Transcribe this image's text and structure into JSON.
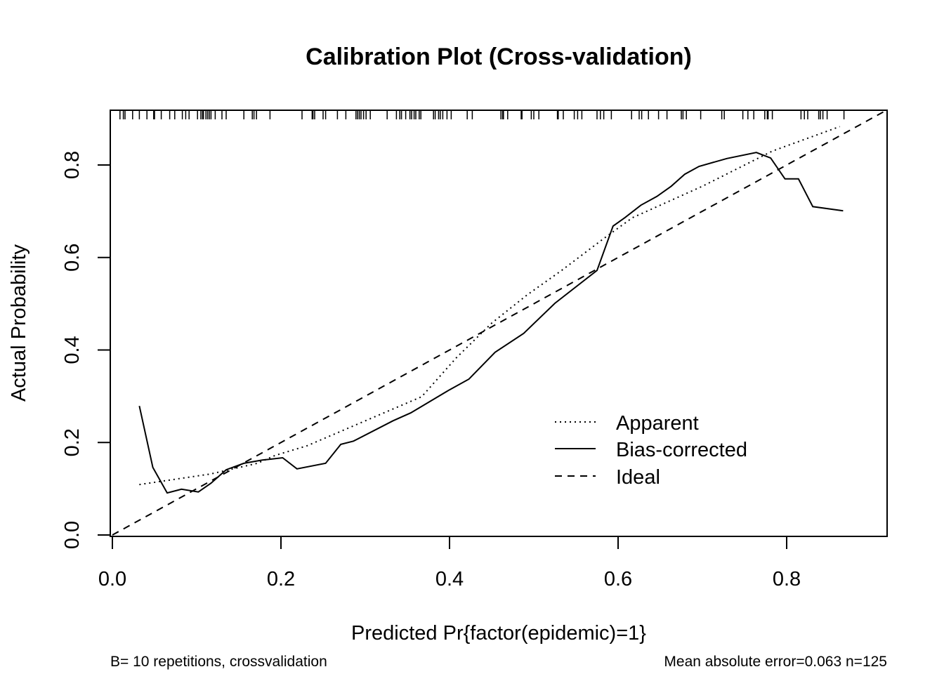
{
  "chart_data": {
    "type": "line",
    "title": "Calibration Plot (Cross-validation)",
    "xlabel": "Predicted Pr{factor(epidemic)=1}",
    "ylabel": "Actual Probability",
    "xlim": [
      0,
      0.919
    ],
    "ylim": [
      0,
      0.918
    ],
    "xticks": [
      0.0,
      0.2,
      0.4,
      0.6,
      0.8
    ],
    "xtick_labels": [
      "0.0",
      "0.2",
      "0.4",
      "0.6",
      "0.8"
    ],
    "yticks": [
      0.0,
      0.2,
      0.4,
      0.6,
      0.8
    ],
    "ytick_labels": [
      "0.0",
      "0.2",
      "0.4",
      "0.6",
      "0.8"
    ],
    "grid": false,
    "legend_position": "bottom-right",
    "footnote_left": "B= 10 repetitions, crossvalidation",
    "footnote_right": "Mean absolute error=0.063 n=125",
    "series": [
      {
        "name": "Apparent",
        "style": "dotted",
        "x": [
          0.032,
          0.117,
          0.172,
          0.193,
          0.231,
          0.367,
          0.408,
          0.45,
          0.492,
          0.533,
          0.583,
          0.617,
          0.7,
          0.783,
          0.863
        ],
        "y": [
          0.109,
          0.132,
          0.155,
          0.172,
          0.193,
          0.299,
          0.383,
          0.458,
          0.519,
          0.572,
          0.641,
          0.686,
          0.754,
          0.83,
          0.883
        ]
      },
      {
        "name": "Bias-corrected",
        "style": "solid",
        "x": [
          0.032,
          0.048,
          0.065,
          0.082,
          0.102,
          0.117,
          0.135,
          0.156,
          0.178,
          0.202,
          0.219,
          0.253,
          0.271,
          0.286,
          0.333,
          0.354,
          0.4,
          0.423,
          0.454,
          0.488,
          0.525,
          0.575,
          0.594,
          0.608,
          0.627,
          0.646,
          0.663,
          0.679,
          0.696,
          0.729,
          0.764,
          0.781,
          0.798,
          0.814,
          0.831,
          0.867
        ],
        "y": [
          0.279,
          0.146,
          0.091,
          0.099,
          0.093,
          0.112,
          0.141,
          0.155,
          0.162,
          0.167,
          0.143,
          0.155,
          0.196,
          0.203,
          0.247,
          0.264,
          0.314,
          0.337,
          0.395,
          0.436,
          0.501,
          0.572,
          0.668,
          0.686,
          0.713,
          0.732,
          0.754,
          0.78,
          0.797,
          0.814,
          0.827,
          0.815,
          0.77,
          0.77,
          0.71,
          0.701
        ]
      },
      {
        "name": "Ideal",
        "style": "dashed",
        "x": [
          0,
          0.919
        ],
        "y": [
          0,
          0.919
        ]
      }
    ],
    "rug_x": [
      0.009,
      0.013,
      0.015,
      0.024,
      0.032,
      0.041,
      0.049,
      0.05,
      0.058,
      0.068,
      0.074,
      0.083,
      0.087,
      0.091,
      0.101,
      0.105,
      0.107,
      0.108,
      0.111,
      0.113,
      0.115,
      0.117,
      0.122,
      0.13,
      0.135,
      0.156,
      0.166,
      0.168,
      0.171,
      0.187,
      0.225,
      0.237,
      0.238,
      0.24,
      0.25,
      0.253,
      0.267,
      0.277,
      0.289,
      0.291,
      0.293,
      0.295,
      0.298,
      0.301,
      0.306,
      0.326,
      0.337,
      0.341,
      0.343,
      0.348,
      0.353,
      0.355,
      0.358,
      0.36,
      0.364,
      0.366,
      0.381,
      0.383,
      0.387,
      0.389,
      0.392,
      0.397,
      0.402,
      0.421,
      0.427,
      0.461,
      0.463,
      0.464,
      0.469,
      0.485,
      0.486,
      0.497,
      0.5,
      0.506,
      0.528,
      0.529,
      0.535,
      0.548,
      0.552,
      0.557,
      0.575,
      0.579,
      0.583,
      0.592,
      0.616,
      0.625,
      0.628,
      0.636,
      0.648,
      0.658,
      0.675,
      0.677,
      0.681,
      0.698,
      0.723,
      0.726,
      0.748,
      0.754,
      0.761,
      0.774,
      0.777,
      0.778,
      0.783,
      0.817,
      0.821,
      0.825,
      0.838,
      0.84,
      0.843,
      0.848,
      0.868
    ]
  }
}
